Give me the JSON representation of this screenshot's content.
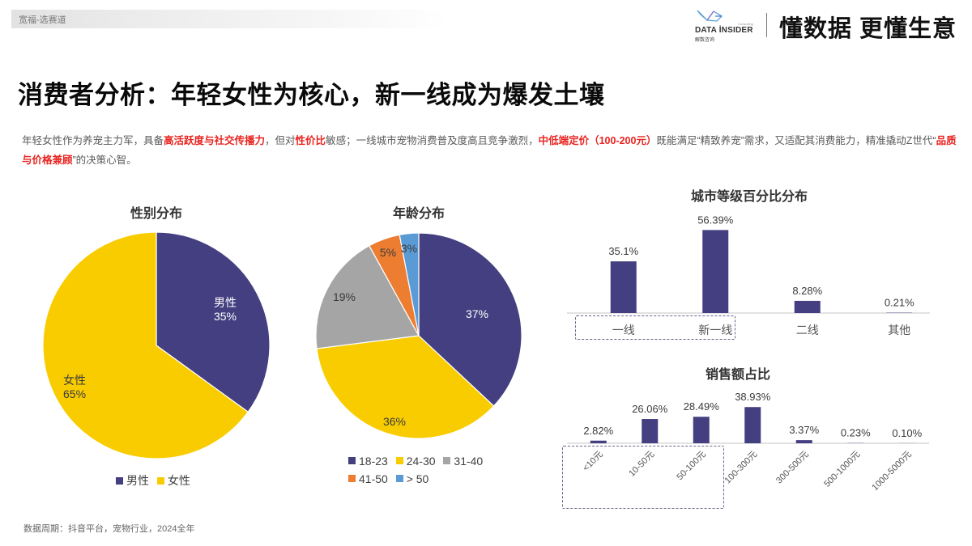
{
  "topbar": {
    "label": "宽福-选赛道"
  },
  "brand": {
    "logo_text": "DATA İNSIDER",
    "logo_cn": "解数咨询",
    "logo_tiny": "Consulting",
    "slogan": "懂数据 更懂生意"
  },
  "headline": "消费者分析：年轻女性为核心，新一线成为爆发土壤",
  "description": {
    "segments": [
      {
        "text": "年轻女性作为养宠主力军，具备",
        "highlight": false
      },
      {
        "text": "高活跃度与社交传播力",
        "highlight": true
      },
      {
        "text": "，但对",
        "highlight": false
      },
      {
        "text": "性价比",
        "highlight": true
      },
      {
        "text": "敏感；一线城市宠物消费普及度高且竞争激烈，",
        "highlight": false
      },
      {
        "text": "中低端定价（100-200元）",
        "highlight": true
      },
      {
        "text": "既能满足“精致养宠”需求，又适配其消费能力，精准撬动Z世代“",
        "highlight": false
      },
      {
        "text": "品质与价格兼顾",
        "highlight": true
      },
      {
        "text": "”的决策心智。",
        "highlight": false
      }
    ],
    "highlight_color": "#e8231f"
  },
  "colors": {
    "navy": "#443f80",
    "yellow": "#f9cc00",
    "gray": "#a5a5a5",
    "orange": "#ed7d31",
    "blue": "#5b9bd5"
  },
  "chart_data": [
    {
      "type": "pie",
      "title": "性别分布",
      "categories": [
        "男性",
        "女性"
      ],
      "values": [
        35,
        65
      ],
      "labels": [
        [
          "男性",
          "35%"
        ],
        [
          "女性",
          "65%"
        ]
      ],
      "colors": [
        "#443f80",
        "#f9cc00"
      ],
      "legend": [
        "男性",
        "女性"
      ],
      "legend_position": "bottom"
    },
    {
      "type": "pie",
      "title": "年龄分布",
      "categories": [
        "18-23",
        "24-30",
        "31-40",
        "41-50",
        "> 50"
      ],
      "values": [
        37,
        36,
        19,
        5,
        3
      ],
      "labels": [
        "37%",
        "36%",
        "19%",
        "5%",
        "3%"
      ],
      "colors": [
        "#443f80",
        "#f9cc00",
        "#a5a5a5",
        "#ed7d31",
        "#5b9bd5"
      ],
      "legend": [
        "18-23",
        "24-30",
        "31-40",
        "41-50",
        "> 50"
      ],
      "legend_position": "bottom"
    },
    {
      "type": "bar",
      "title": "城市等级百分比分布",
      "categories": [
        "一线",
        "新一线",
        "二线",
        "其他"
      ],
      "values": [
        35.1,
        56.39,
        8.28,
        0.21
      ],
      "labels": [
        "35.1%",
        "56.39%",
        "8.28%",
        "0.21%"
      ],
      "highlighted_categories": [
        "一线",
        "新一线"
      ],
      "ylim": [
        0,
        60
      ],
      "grid": false,
      "xlabel": "",
      "ylabel": ""
    },
    {
      "type": "bar",
      "title": "销售额占比",
      "categories": [
        "<10元",
        "10-50元",
        "50-100元",
        "100-300元",
        "300-500元",
        "500-1000元",
        "1000-5000元"
      ],
      "values": [
        2.82,
        26.06,
        28.49,
        38.93,
        3.37,
        0.23,
        0.1
      ],
      "labels": [
        "2.82%",
        "26.06%",
        "28.49%",
        "38.93%",
        "3.37%",
        "0.23%",
        "0.10%"
      ],
      "highlighted_categories": [
        "<10元",
        "10-50元",
        "50-100元"
      ],
      "ylim": [
        0,
        45
      ],
      "grid": false,
      "xlabel": "",
      "ylabel": ""
    }
  ],
  "footer": "数据周期：抖音平台，宠物行业，2024全年"
}
